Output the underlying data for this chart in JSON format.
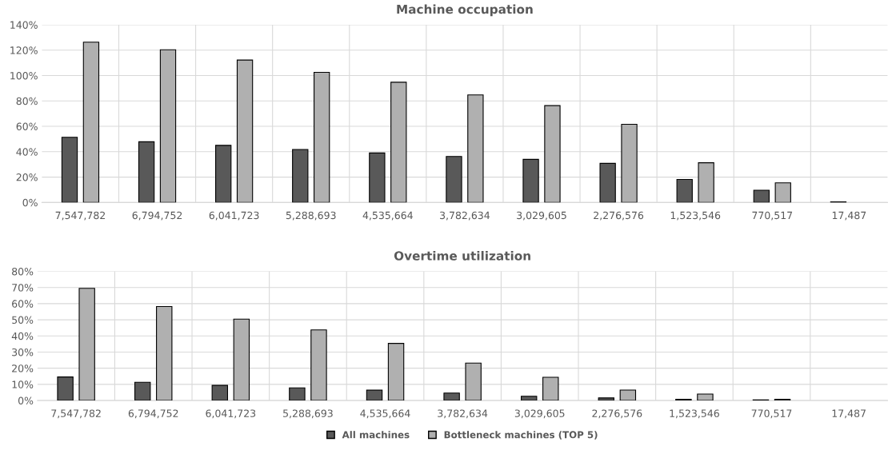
{
  "chart_data": [
    {
      "type": "bar",
      "title": "Machine occupation",
      "categories": [
        "7,547,782",
        "6,794,752",
        "6,041,723",
        "5,288,693",
        "4,535,664",
        "3,782,634",
        "3,029,605",
        "2,276,576",
        "1,523,546",
        "770,517",
        "17,487"
      ],
      "series": [
        {
          "color": "#595959",
          "values": [
            51.4,
            47.8,
            45,
            41.8,
            39,
            36.3,
            34,
            30.8,
            18.2,
            9.7,
            0.5
          ]
        },
        {
          "color": "#b0b0b0",
          "values": [
            126.3,
            120.3,
            112.2,
            102.5,
            94.7,
            84.7,
            76.3,
            61.6,
            31.3,
            15.5,
            0
          ]
        }
      ],
      "ylim": [
        0,
        140
      ],
      "yticks": [
        {
          "value": 0,
          "label": "0%"
        },
        {
          "value": 20,
          "label": "20%"
        },
        {
          "value": 40,
          "label": "40%"
        },
        {
          "value": 60,
          "label": "60%"
        },
        {
          "value": 80,
          "label": "80%"
        },
        {
          "value": 100,
          "label": "100%"
        },
        {
          "value": 120,
          "label": "120%"
        },
        {
          "value": 140,
          "label": "140%"
        }
      ],
      "grid": true,
      "legend": false
    },
    {
      "type": "bar",
      "title": "Overtime utilization",
      "categories": [
        "7,547,782",
        "6,794,752",
        "6,041,723",
        "5,288,693",
        "4,535,664",
        "3,782,634",
        "3,029,605",
        "2,276,576",
        "1,523,546",
        "770,517",
        "17,487"
      ],
      "series": [
        {
          "name": "All machines",
          "color": "#595959",
          "values": [
            14.6,
            11.3,
            9.4,
            7.8,
            6.4,
            4.6,
            2.6,
            1.6,
            0.7,
            0.4,
            0
          ]
        },
        {
          "name": "Bottleneck machines (TOP 5)",
          "color": "#b0b0b0",
          "values": [
            69.5,
            58.2,
            50.4,
            43.7,
            35.4,
            23.2,
            14.4,
            6.5,
            4.0,
            0.7,
            0
          ]
        }
      ],
      "ylim": [
        0,
        80
      ],
      "yticks": [
        {
          "value": 0,
          "label": "0%"
        },
        {
          "value": 10,
          "label": "10%"
        },
        {
          "value": 20,
          "label": "20%"
        },
        {
          "value": 30,
          "label": "30%"
        },
        {
          "value": 40,
          "label": "40%"
        },
        {
          "value": 50,
          "label": "50%"
        },
        {
          "value": 60,
          "label": "60%"
        },
        {
          "value": 70,
          "label": "70%"
        },
        {
          "value": 80,
          "label": "80%"
        }
      ],
      "grid": true,
      "legend": "bottom"
    }
  ]
}
